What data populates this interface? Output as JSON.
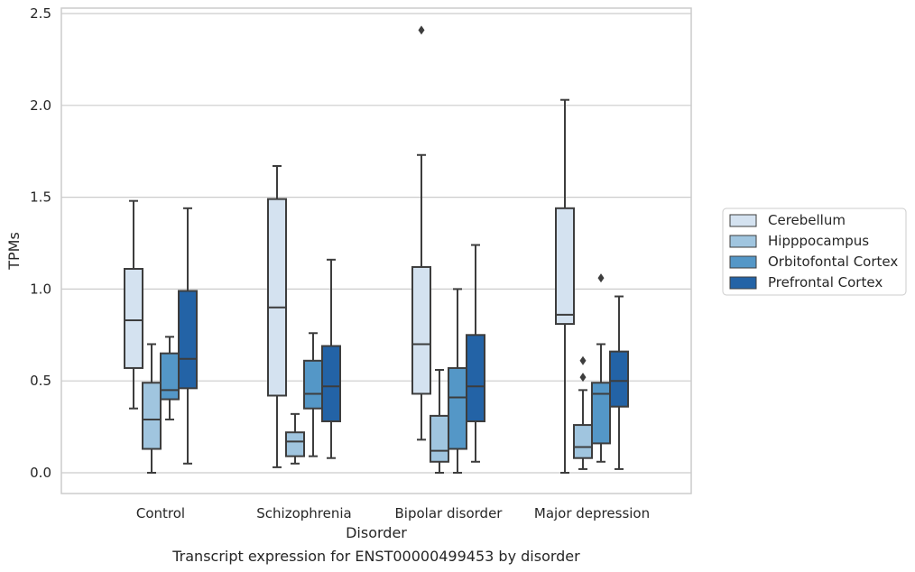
{
  "chart_data": {
    "type": "boxplot",
    "xlabel": "Disorder",
    "ylabel": "TPMs",
    "caption": "Transcript expression for ENST00000499453 by disorder",
    "ylim": [
      -0.12,
      2.55
    ],
    "yticks": [
      "0.0",
      "0.5",
      "1.0",
      "1.5",
      "2.0",
      "2.5"
    ],
    "ytick_values": [
      0.0,
      0.5,
      1.0,
      1.5,
      2.0,
      2.5
    ],
    "grid": "horizontal",
    "legend_placement": "center-right outside",
    "categories": [
      "Control",
      "Schizophrenia",
      "Bipolar disorder",
      "Major depression"
    ],
    "series": [
      {
        "name": "Cerebellum",
        "color": "#d4e2f0",
        "boxes": [
          {
            "whislo": 0.35,
            "q1": 0.57,
            "med": 0.83,
            "q3": 1.11,
            "whishi": 1.48,
            "fliers": []
          },
          {
            "whislo": 0.03,
            "q1": 0.42,
            "med": 0.9,
            "q3": 1.49,
            "whishi": 1.67,
            "fliers": []
          },
          {
            "whislo": 0.18,
            "q1": 0.43,
            "med": 0.7,
            "q3": 1.12,
            "whishi": 1.73,
            "fliers": [
              2.41
            ]
          },
          {
            "whislo": 0.0,
            "q1": 0.81,
            "med": 0.86,
            "q3": 1.44,
            "whishi": 2.03,
            "fliers": []
          }
        ]
      },
      {
        "name": "Hipppocampus",
        "color": "#a0c5df",
        "boxes": [
          {
            "whislo": 0.0,
            "q1": 0.13,
            "med": 0.29,
            "q3": 0.49,
            "whishi": 0.7,
            "fliers": []
          },
          {
            "whislo": 0.05,
            "q1": 0.09,
            "med": 0.17,
            "q3": 0.22,
            "whishi": 0.32,
            "fliers": []
          },
          {
            "whislo": 0.0,
            "q1": 0.06,
            "med": 0.12,
            "q3": 0.31,
            "whishi": 0.56,
            "fliers": []
          },
          {
            "whislo": 0.02,
            "q1": 0.08,
            "med": 0.14,
            "q3": 0.26,
            "whishi": 0.45,
            "fliers": [
              0.52,
              0.61
            ]
          }
        ]
      },
      {
        "name": "Orbitofontal Cortex",
        "color": "#5497c7",
        "boxes": [
          {
            "whislo": 0.29,
            "q1": 0.4,
            "med": 0.45,
            "q3": 0.65,
            "whishi": 0.74,
            "fliers": []
          },
          {
            "whislo": 0.09,
            "q1": 0.35,
            "med": 0.43,
            "q3": 0.61,
            "whishi": 0.76,
            "fliers": []
          },
          {
            "whislo": 0.0,
            "q1": 0.13,
            "med": 0.41,
            "q3": 0.57,
            "whishi": 1.0,
            "fliers": []
          },
          {
            "whislo": 0.06,
            "q1": 0.16,
            "med": 0.43,
            "q3": 0.49,
            "whishi": 0.7,
            "fliers": [
              1.06
            ]
          }
        ]
      },
      {
        "name": "Prefrontal Cortex",
        "color": "#2363a6",
        "boxes": [
          {
            "whislo": 0.05,
            "q1": 0.46,
            "med": 0.62,
            "q3": 0.99,
            "whishi": 1.44,
            "fliers": []
          },
          {
            "whislo": 0.08,
            "q1": 0.28,
            "med": 0.47,
            "q3": 0.69,
            "whishi": 1.16,
            "fliers": []
          },
          {
            "whislo": 0.06,
            "q1": 0.28,
            "med": 0.47,
            "q3": 0.75,
            "whishi": 1.24,
            "fliers": []
          },
          {
            "whislo": 0.02,
            "q1": 0.36,
            "med": 0.5,
            "q3": 0.66,
            "whishi": 0.96,
            "fliers": []
          }
        ]
      }
    ]
  }
}
